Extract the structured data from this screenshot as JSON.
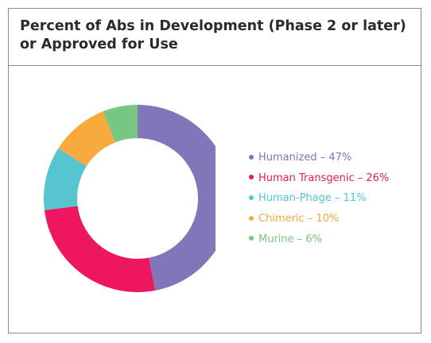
{
  "chart_data": {
    "type": "pie",
    "title": "Percent of Abs in Development (Phase 2 or later) or Approved for Use",
    "donut": true,
    "legend_position": "right",
    "slices": [
      {
        "name": "Humanized",
        "label": "Humanized – 47%",
        "value": 47,
        "color": "#8076b8"
      },
      {
        "name": "Human Transgenic",
        "label": "Human Transgenic – 26%",
        "value": 26,
        "color": "#ee1660"
      },
      {
        "name": "Human-Phage",
        "label": "Human-Phage – 11%",
        "value": 11,
        "color": "#56c5d0"
      },
      {
        "name": "Chimeric",
        "label": "Chimeric – 10%",
        "value": 10,
        "color": "#f8aa3c"
      },
      {
        "name": "Murine",
        "label": "Murine – 6%",
        "value": 6,
        "color": "#78c683"
      }
    ]
  }
}
